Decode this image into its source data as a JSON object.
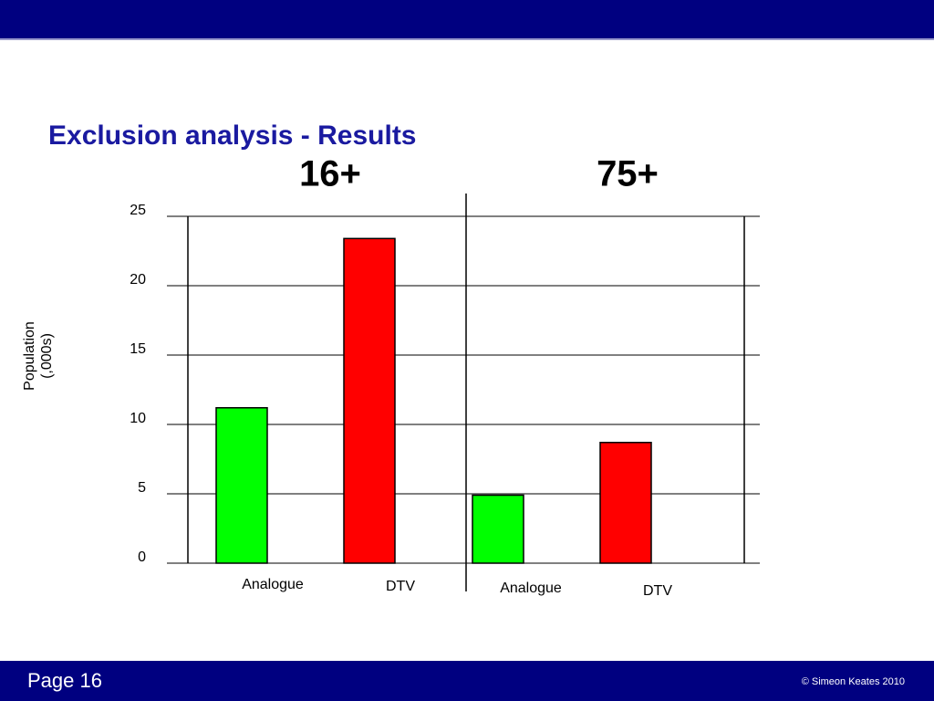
{
  "chart_data": {
    "type": "bar",
    "title": "Exclusion analysis - Results",
    "groups": [
      "16+",
      "75+"
    ],
    "categories": [
      "Analogue",
      "DTV",
      "Analogue",
      "DTV"
    ],
    "values": [
      11.2,
      23.4,
      4.9,
      8.7
    ],
    "colors": [
      "#00ff00",
      "#ff0000",
      "#00ff00",
      "#ff0000"
    ],
    "ylabel": [
      "Population",
      "(,000s)"
    ],
    "ylim": [
      0,
      25
    ],
    "yticks": [
      0,
      5,
      10,
      15,
      20,
      25
    ],
    "grid": true
  },
  "footer": {
    "page": "Page 16",
    "copyright": "© Simeon Keates 2010"
  }
}
